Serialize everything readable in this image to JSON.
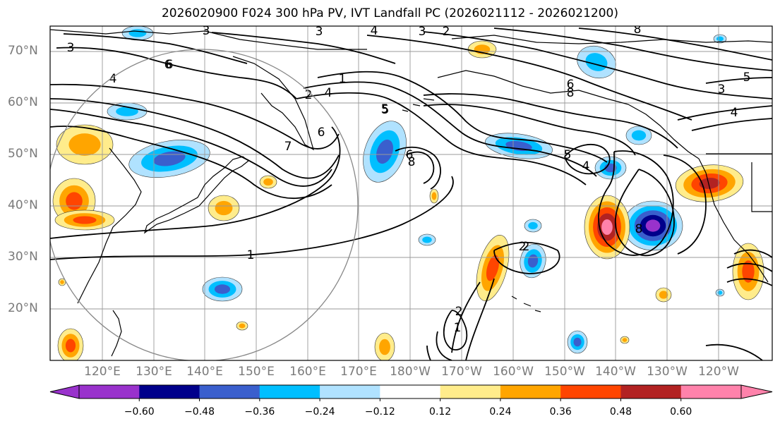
{
  "title": "2026020900 F024 300 hPa PV, IVT Landfall PC (2026021112 - 2026021200)",
  "lat_labels": [
    "70°N",
    "60°N",
    "50°N",
    "40°N",
    "30°N",
    "20°N"
  ],
  "lon_labels": [
    "120°E",
    "130°E",
    "140°E",
    "150°E",
    "160°E",
    "170°E",
    "180°W",
    "170°W",
    "160°W",
    "150°W",
    "140°W",
    "130°W",
    "120°W"
  ],
  "colorbar": {
    "colors": [
      "#9932CC",
      "#00008B",
      "#3A5FCD",
      "#00BFFF",
      "#B0E2FF",
      "#FFFFFF",
      "#FFEC8B",
      "#FFA500",
      "#FF4500",
      "#B22222",
      "#FF82AB"
    ],
    "tick_labels": [
      "−0.60",
      "−0.48",
      "−0.36",
      "−0.24",
      "−0.12",
      "0.12",
      "0.24",
      "0.36",
      "0.48",
      "0.60"
    ]
  },
  "contour_labels": [
    "3",
    "4",
    "3",
    "2",
    "8",
    "5",
    "6",
    "3",
    "1",
    "2",
    "4",
    "5",
    "6",
    "8",
    "7",
    "3",
    "6",
    "8",
    "4",
    "5",
    "3",
    "4",
    "1",
    "2",
    "1",
    "8",
    "6",
    "5",
    "4",
    "2",
    "2",
    "6"
  ]
}
